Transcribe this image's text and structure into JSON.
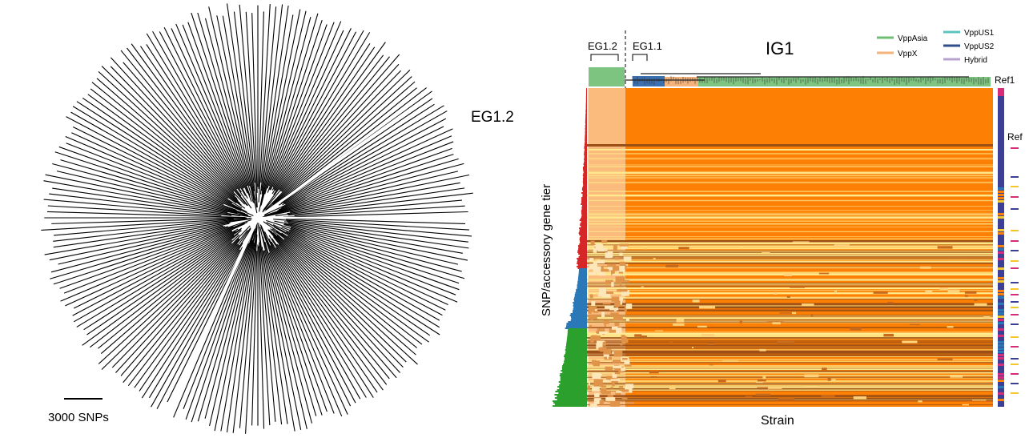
{
  "left_panel": {
    "label": "EG1.2",
    "scale_bar": "3000 SNPs"
  },
  "right_panel": {
    "title": "IG1",
    "clade_labels": [
      "EG1.2",
      "EG1.1"
    ],
    "legend": [
      {
        "name": "VppAsia",
        "color": "#6fbf73"
      },
      {
        "name": "VppX",
        "color": "#f5b27a"
      },
      {
        "name": "VppUS1",
        "color": "#5fc4c0"
      },
      {
        "name": "VppUS2",
        "color": "#2f4e8c"
      },
      {
        "name": "Hybrid",
        "color": "#b9a2cf"
      }
    ],
    "ref_labels": [
      "Ref1",
      "Ref"
    ],
    "y_axis_label": "SNP/accessory gene tier",
    "x_axis_label": "Strain",
    "colors": {
      "heat_main": "#fd7f03",
      "heat_block": "#fbbb7c",
      "heat_dark": "#9a4f17",
      "heat_light": "#ffe98c",
      "tier_red": "#d62728",
      "tier_blue": "#2a78b8",
      "tier_green": "#2ca02c"
    }
  }
}
